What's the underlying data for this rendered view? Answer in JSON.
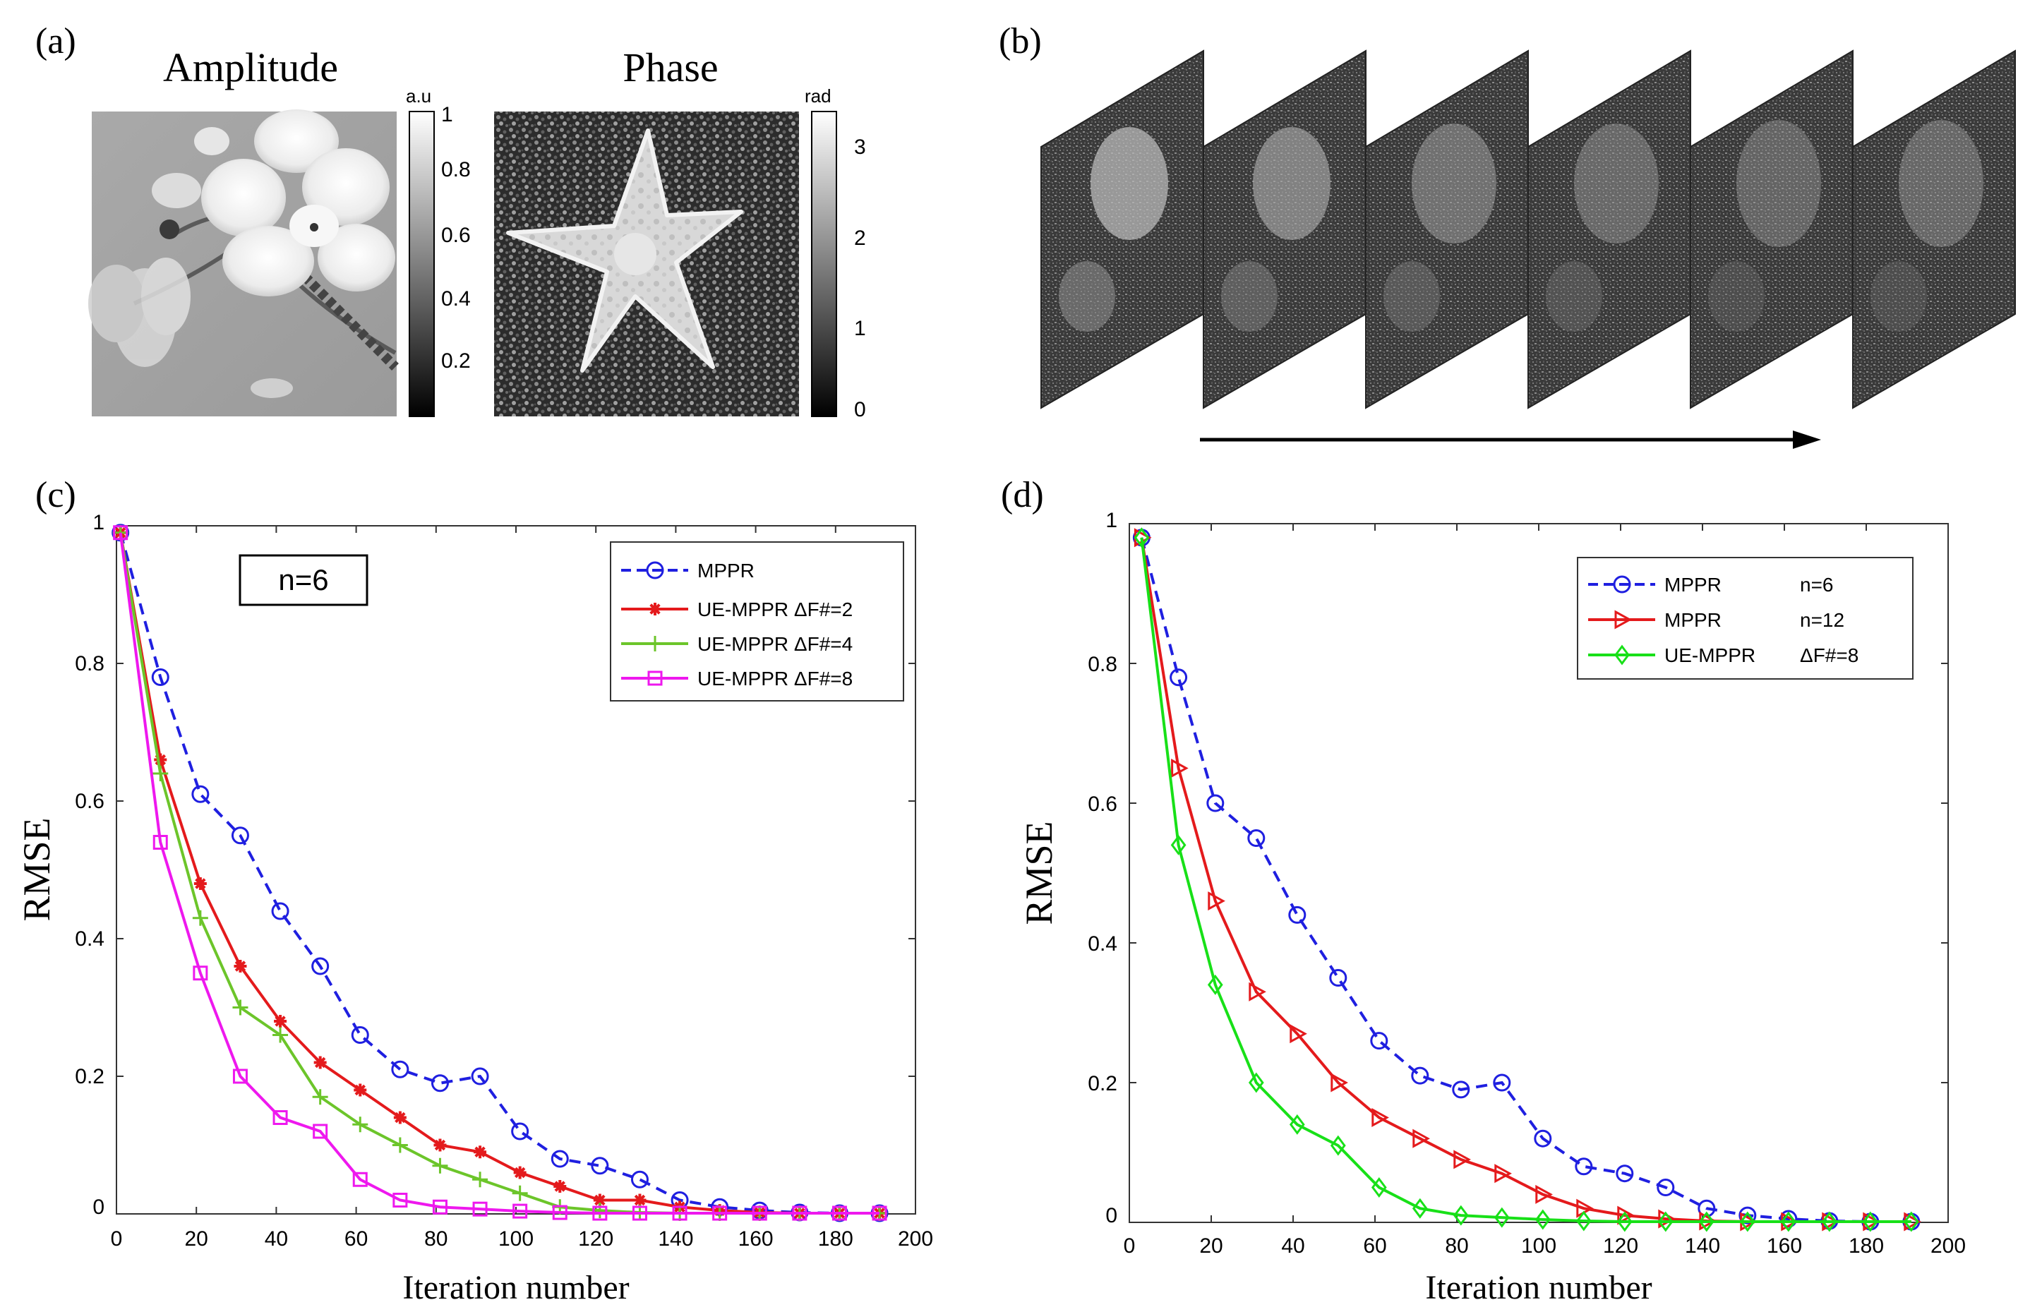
{
  "panels": {
    "a": {
      "label": "(a)",
      "amplitude_title": "Amplitude",
      "phase_title": "Phase",
      "amp_colorbar": {
        "unit": "a.u",
        "ticks": [
          "1",
          "0.8",
          "0.6",
          "0.4",
          "0.2"
        ]
      },
      "phase_colorbar": {
        "unit": "rad",
        "ticks": [
          "3",
          "2",
          "1",
          "0"
        ]
      }
    },
    "b": {
      "label": "(b)"
    },
    "c": {
      "label": "(c)"
    },
    "d": {
      "label": "(d)"
    }
  },
  "chart_data": [
    {
      "panel": "c",
      "type": "line",
      "xlabel": "Iteration number",
      "ylabel": "RMSE",
      "xlim": [
        0,
        200
      ],
      "ylim": [
        0,
        1
      ],
      "xticks": [
        "0",
        "20",
        "40",
        "60",
        "80",
        "100",
        "120",
        "140",
        "160",
        "180",
        "200"
      ],
      "yticks": [
        "0",
        "0.2",
        "0.4",
        "0.6",
        "0.8",
        "1"
      ],
      "annotation": "n=6",
      "legend_position": "top-right",
      "x": [
        1,
        11,
        21,
        31,
        41,
        51,
        61,
        71,
        81,
        91,
        101,
        111,
        121,
        131,
        141,
        151,
        161,
        171,
        181,
        191
      ],
      "series": [
        {
          "name": "MPPR",
          "color": "#1f1fe0",
          "dash": true,
          "marker": "circle",
          "values": [
            0.99,
            0.78,
            0.61,
            0.55,
            0.44,
            0.36,
            0.26,
            0.21,
            0.19,
            0.2,
            0.12,
            0.08,
            0.07,
            0.05,
            0.02,
            0.01,
            0.005,
            0.002,
            0.001,
            0.001
          ]
        },
        {
          "name": "UE-MPPR  ΔF#=2",
          "color": "#e41a1c",
          "dash": false,
          "marker": "asterisk",
          "values": [
            0.99,
            0.66,
            0.48,
            0.36,
            0.28,
            0.22,
            0.18,
            0.14,
            0.1,
            0.09,
            0.06,
            0.04,
            0.02,
            0.02,
            0.01,
            0.005,
            0.002,
            0.001,
            0.001,
            0.001
          ]
        },
        {
          "name": "UE-MPPR  ΔF#=4",
          "color": "#6cc52a",
          "dash": false,
          "marker": "plus",
          "values": [
            0.99,
            0.64,
            0.43,
            0.3,
            0.26,
            0.17,
            0.13,
            0.1,
            0.07,
            0.05,
            0.03,
            0.01,
            0.005,
            0.002,
            0.001,
            0.001,
            0.001,
            0.001,
            0.001,
            0.001
          ]
        },
        {
          "name": "UE-MPPR  ΔF#=8",
          "color": "#ee18ee",
          "dash": false,
          "marker": "square",
          "values": [
            0.99,
            0.54,
            0.35,
            0.2,
            0.14,
            0.12,
            0.05,
            0.02,
            0.01,
            0.007,
            0.004,
            0.002,
            0.001,
            0.001,
            0.001,
            0.001,
            0.001,
            0.001,
            0.001,
            0.001
          ]
        }
      ]
    },
    {
      "panel": "d",
      "type": "line",
      "xlabel": "Iteration number",
      "ylabel": "RMSE",
      "xlim": [
        0,
        200
      ],
      "ylim": [
        0,
        1
      ],
      "xticks": [
        "0",
        "20",
        "40",
        "60",
        "80",
        "100",
        "120",
        "140",
        "160",
        "180",
        "200"
      ],
      "yticks": [
        "0",
        "0.2",
        "0.4",
        "0.6",
        "0.8",
        "1"
      ],
      "legend_position": "top-right",
      "x": [
        3,
        12,
        21,
        31,
        41,
        51,
        61,
        71,
        81,
        91,
        101,
        111,
        121,
        131,
        141,
        151,
        161,
        171,
        181,
        191
      ],
      "series": [
        {
          "name": "MPPR",
          "param": "n=6",
          "color": "#1f1fe0",
          "dash": true,
          "marker": "circle",
          "values": [
            0.98,
            0.78,
            0.6,
            0.55,
            0.44,
            0.35,
            0.26,
            0.21,
            0.19,
            0.2,
            0.12,
            0.08,
            0.07,
            0.05,
            0.02,
            0.01,
            0.005,
            0.002,
            0.001,
            0.001
          ]
        },
        {
          "name": "MPPR",
          "param": "n=12",
          "color": "#e41a1c",
          "dash": false,
          "marker": "triangle-right",
          "values": [
            0.98,
            0.65,
            0.46,
            0.33,
            0.27,
            0.2,
            0.15,
            0.12,
            0.09,
            0.07,
            0.04,
            0.02,
            0.01,
            0.005,
            0.002,
            0.001,
            0.001,
            0.001,
            0.001,
            0.001
          ]
        },
        {
          "name": "UE-MPPR",
          "param": "ΔF#=8",
          "color": "#18e018",
          "dash": false,
          "marker": "diamond",
          "values": [
            0.98,
            0.54,
            0.34,
            0.2,
            0.14,
            0.11,
            0.05,
            0.02,
            0.01,
            0.007,
            0.004,
            0.002,
            0.001,
            0.001,
            0.001,
            0.001,
            0.001,
            0.001,
            0.001,
            0.001
          ]
        }
      ]
    }
  ]
}
